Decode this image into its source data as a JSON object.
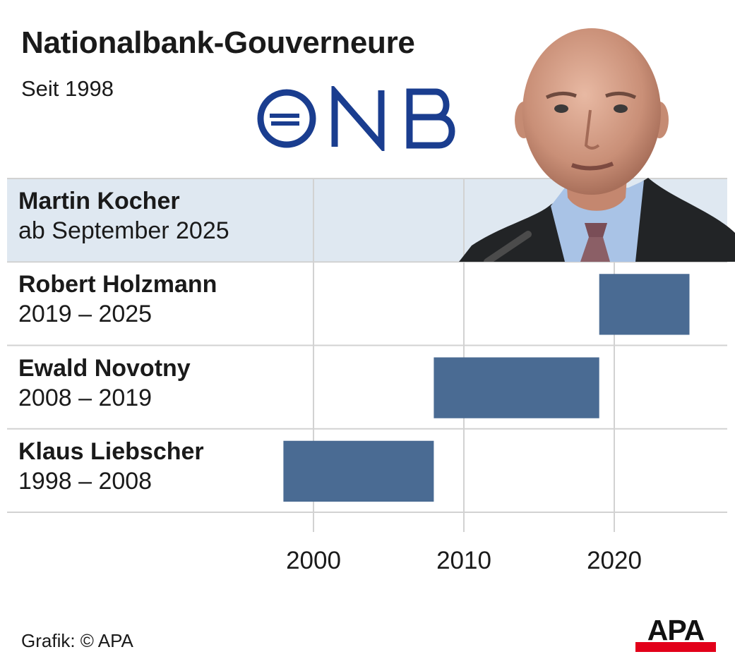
{
  "header": {
    "title": "Nationalbank-Gouverneure",
    "subtitle": "Seit 1998"
  },
  "logo": {
    "name": "oenb-logo",
    "text": "ONB",
    "color": "#1a3d8f"
  },
  "photo": {
    "subject": "portrait-martin-kocher"
  },
  "colors": {
    "bar": "#4a6b93",
    "highlight_row": "#dfe8f1",
    "grid": "#d2d2d2",
    "text": "#1a1a1a",
    "apa_red": "#e2001a"
  },
  "rows": [
    {
      "name": "Martin Kocher",
      "period": "ab September 2025",
      "highlighted": true
    },
    {
      "name": "Robert Holzmann",
      "period": "2019 – 2025"
    },
    {
      "name": "Ewald Novotny",
      "period": "2008 – 2019"
    },
    {
      "name": "Klaus Liebscher",
      "period": "1998 – 2008"
    }
  ],
  "chart_data": {
    "type": "bar",
    "orientation": "horizontal-timeline",
    "title": "Nationalbank-Gouverneure",
    "subtitle": "Seit 1998",
    "categories": [
      "Martin Kocher",
      "Robert Holzmann",
      "Ewald Novotny",
      "Klaus Liebscher"
    ],
    "bars": [
      {
        "category": "Robert Holzmann",
        "start": 2019,
        "end": 2025
      },
      {
        "category": "Ewald Novotny",
        "start": 2008,
        "end": 2019
      },
      {
        "category": "Klaus Liebscher",
        "start": 1998,
        "end": 2008
      }
    ],
    "xlim": [
      1998,
      2027
    ],
    "xticks": [
      2000,
      2010,
      2020
    ],
    "xtick_labels": [
      "2000",
      "2010",
      "2020"
    ],
    "grid": "vertical",
    "legend": "none"
  },
  "footer": {
    "source": "Grafik: © APA",
    "brand": "APA"
  }
}
